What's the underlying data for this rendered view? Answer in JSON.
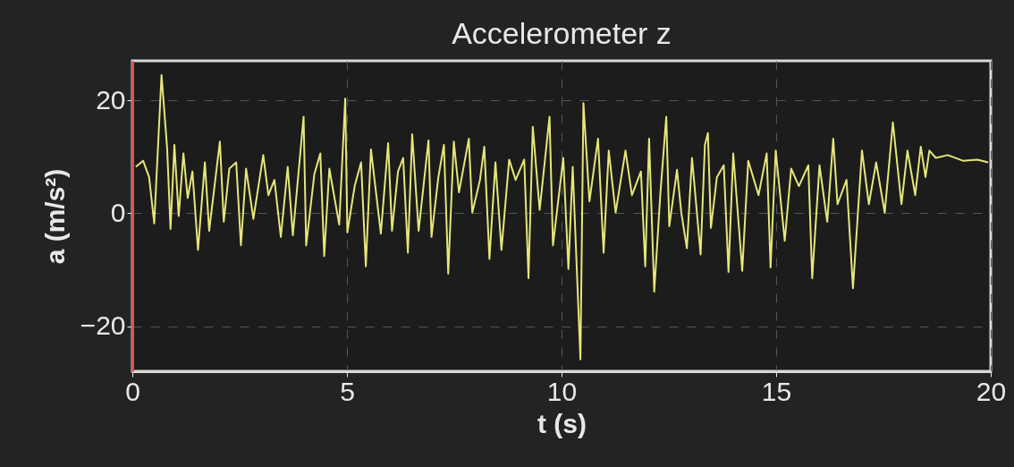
{
  "chart_data": {
    "type": "line",
    "title": "Accelerometer z",
    "xlabel": "t (s)",
    "ylabel": "a (m/s²)",
    "x": [
      0.08,
      0.25,
      0.39,
      0.51,
      0.68,
      0.81,
      0.89,
      0.98,
      1.08,
      1.19,
      1.29,
      1.4,
      1.53,
      1.69,
      1.79,
      2.04,
      2.13,
      2.26,
      2.42,
      2.53,
      2.65,
      2.82,
      3.05,
      3.17,
      3.31,
      3.46,
      3.62,
      3.74,
      3.99,
      4.05,
      4.24,
      4.38,
      4.47,
      4.59,
      4.82,
      4.96,
      5.01,
      5.18,
      5.33,
      5.44,
      5.56,
      5.79,
      5.96,
      6.05,
      6.19,
      6.31,
      6.42,
      6.52,
      6.67,
      6.9,
      6.97,
      7.13,
      7.26,
      7.36,
      7.49,
      7.61,
      7.84,
      7.92,
      8.1,
      8.2,
      8.32,
      8.46,
      8.6,
      8.78,
      8.93,
      9.13,
      9.23,
      9.33,
      9.49,
      9.72,
      9.8,
      10.04,
      10.16,
      10.26,
      10.44,
      10.51,
      10.65,
      10.85,
      10.98,
      11.1,
      11.26,
      11.49,
      11.64,
      11.85,
      11.95,
      12.04,
      12.16,
      12.3,
      12.44,
      12.51,
      12.69,
      12.79,
      12.92,
      13.04,
      13.24,
      13.34,
      13.41,
      13.48,
      13.62,
      13.78,
      13.89,
      14.0,
      14.21,
      14.35,
      14.59,
      14.78,
      14.87,
      14.99,
      15.2,
      15.35,
      15.53,
      15.75,
      15.84,
      16.01,
      16.19,
      16.33,
      16.43,
      16.64,
      16.79,
      17.0,
      17.16,
      17.33,
      17.53,
      17.72,
      17.92,
      18.06,
      18.24,
      18.37,
      18.48,
      18.57,
      18.72,
      19.0,
      19.35,
      19.69,
      19.94
    ],
    "values": [
      8.2,
      9.3,
      6.4,
      -1.8,
      24.5,
      11.6,
      -2.8,
      12.1,
      -0.5,
      10.6,
      2.7,
      7.4,
      -6.5,
      9.0,
      -3.1,
      12.7,
      -1.5,
      7.9,
      9.0,
      -5.7,
      7.9,
      -1.0,
      10.3,
      3.2,
      5.9,
      -4.2,
      8.2,
      -3.9,
      17.1,
      -5.7,
      6.9,
      10.6,
      -7.6,
      7.9,
      -2.0,
      20.3,
      -3.4,
      4.8,
      9.0,
      -9.4,
      11.3,
      -3.6,
      12.4,
      -3.1,
      7.4,
      9.8,
      -7.0,
      14.0,
      -3.1,
      12.9,
      -4.2,
      6.4,
      12.1,
      -10.7,
      12.7,
      3.7,
      13.2,
      0.1,
      5.9,
      11.8,
      -8.1,
      9.0,
      -6.5,
      9.5,
      5.9,
      9.5,
      -11.5,
      15.3,
      0.6,
      17.1,
      -5.7,
      9.8,
      -9.9,
      8.2,
      -25.9,
      19.5,
      2.1,
      13.2,
      -7.0,
      11.1,
      0.1,
      11.1,
      3.2,
      7.4,
      -9.4,
      13.2,
      -13.9,
      3.2,
      17.1,
      -2.3,
      7.7,
      0.1,
      -6.2,
      9.8,
      -7.3,
      12.1,
      14.2,
      -2.6,
      6.4,
      8.5,
      -10.4,
      10.6,
      -10.2,
      9.3,
      3.2,
      10.6,
      -9.6,
      11.1,
      -4.9,
      7.9,
      4.8,
      8.5,
      -11.5,
      8.5,
      -1.5,
      13.2,
      1.6,
      5.9,
      -13.3,
      11.1,
      1.6,
      9.0,
      0.1,
      16.1,
      1.6,
      11.1,
      3.2,
      11.8,
      6.4,
      11.1,
      9.8,
      10.3,
      9.3,
      9.5,
      9.0
    ],
    "color": "#e6e67a",
    "xlim": [
      0,
      20
    ],
    "ylim": [
      -28,
      27
    ],
    "xticks": [
      0,
      5,
      10,
      15,
      20
    ],
    "yticks": [
      -20,
      0,
      20
    ],
    "grid": true,
    "line_style": "solid"
  }
}
